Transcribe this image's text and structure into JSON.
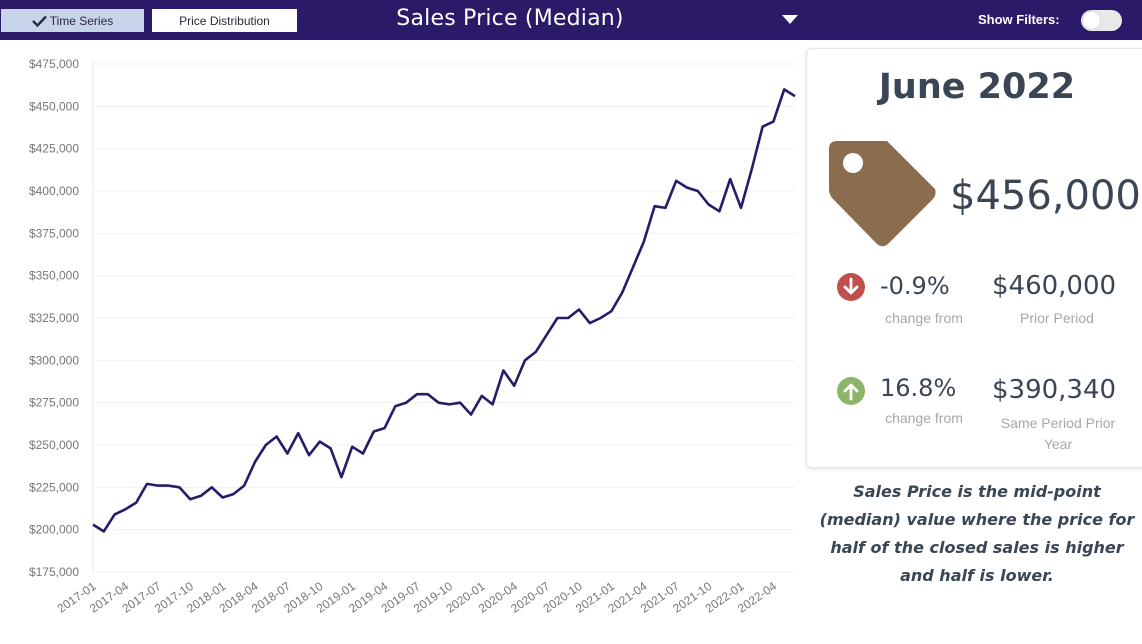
{
  "header": {
    "tab_time_series": "Time Series",
    "tab_price_distribution": "Price Distribution",
    "title": "Sales Price (Median)",
    "show_filters_label": "Show Filters:",
    "show_filters_on": false,
    "colors": {
      "bar": "#2a1a68",
      "active_tab": "#c7d3e8"
    }
  },
  "kpi": {
    "month": "June 2022",
    "price": "$456,000",
    "tag_icon": "price-tag-icon",
    "prior_change": {
      "icon": "arrow-down-circle-icon",
      "color": "#c0504d",
      "pct": "-0.9%",
      "change_label": "change from",
      "value": "$460,000",
      "value_label": "Prior Period"
    },
    "year_change": {
      "icon": "arrow-up-circle-icon",
      "color": "#8db56a",
      "pct": "16.8%",
      "change_label": "change from",
      "value": "$390,340",
      "value_label": "Same Period Prior Year"
    }
  },
  "note": "Sales Price is the mid-point (median) value where the price for half of the closed sales is higher and half is lower.",
  "chart_data": {
    "type": "line",
    "title": "",
    "xlabel": "",
    "ylabel": "",
    "line_color": "#2a1a68",
    "ylim": [
      175000,
      475000
    ],
    "y_ticks": [
      "$175,000",
      "$200,000",
      "$225,000",
      "$250,000",
      "$275,000",
      "$300,000",
      "$325,000",
      "$350,000",
      "$375,000",
      "$400,000",
      "$425,000",
      "$450,000",
      "$475,000"
    ],
    "x_ticks": [
      "2017-01",
      "2017-04",
      "2017-07",
      "2017-10",
      "2018-01",
      "2018-04",
      "2018-07",
      "2018-10",
      "2019-01",
      "2019-04",
      "2019-07",
      "2019-10",
      "2020-01",
      "2020-04",
      "2020-07",
      "2020-10",
      "2021-01",
      "2021-04",
      "2021-07",
      "2021-10",
      "2022-01",
      "2022-04"
    ],
    "grid": true,
    "x": [
      "2017-01",
      "2017-02",
      "2017-03",
      "2017-04",
      "2017-05",
      "2017-06",
      "2017-07",
      "2017-08",
      "2017-09",
      "2017-10",
      "2017-11",
      "2017-12",
      "2018-01",
      "2018-02",
      "2018-03",
      "2018-04",
      "2018-05",
      "2018-06",
      "2018-07",
      "2018-08",
      "2018-09",
      "2018-10",
      "2018-11",
      "2018-12",
      "2019-01",
      "2019-02",
      "2019-03",
      "2019-04",
      "2019-05",
      "2019-06",
      "2019-07",
      "2019-08",
      "2019-09",
      "2019-10",
      "2019-11",
      "2019-12",
      "2020-01",
      "2020-02",
      "2020-03",
      "2020-04",
      "2020-05",
      "2020-06",
      "2020-07",
      "2020-08",
      "2020-09",
      "2020-10",
      "2020-11",
      "2020-12",
      "2021-01",
      "2021-02",
      "2021-03",
      "2021-04",
      "2021-05",
      "2021-06",
      "2021-07",
      "2021-08",
      "2021-09",
      "2021-10",
      "2021-11",
      "2021-12",
      "2022-01",
      "2022-02",
      "2022-03",
      "2022-04",
      "2022-05",
      "2022-06"
    ],
    "values": [
      203000,
      199000,
      209000,
      212000,
      216000,
      227000,
      226000,
      226000,
      225000,
      218000,
      220000,
      225000,
      219000,
      221000,
      226000,
      240000,
      250000,
      255000,
      245000,
      257000,
      244000,
      252000,
      248000,
      231000,
      249000,
      245000,
      258000,
      260000,
      273000,
      275000,
      280000,
      280000,
      275000,
      274000,
      275000,
      268000,
      279000,
      274000,
      294000,
      285000,
      300000,
      305000,
      315000,
      325000,
      325000,
      330000,
      322000,
      325000,
      329000,
      340000,
      355000,
      370000,
      391000,
      390000,
      406000,
      402000,
      400000,
      392000,
      388000,
      407000,
      390000,
      413000,
      438000,
      441000,
      460000,
      456000
    ]
  }
}
